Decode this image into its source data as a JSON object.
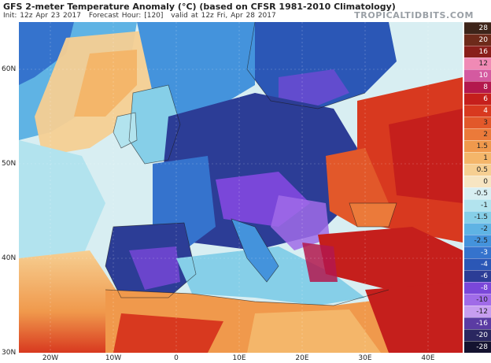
{
  "header": {
    "title": "GFS 2-meter Temperature Anomaly (°C) (based on CFSR 1981-2010 Climatology)",
    "init": "Init: 12z Apr 23 2017",
    "forecast_hour": "Forecast Hour: [120]",
    "valid": "valid at 12z Fri, Apr 28 2017",
    "brand": "TROPICALTIDBITS.COM"
  },
  "axes": {
    "lat_labels": [
      "60N",
      "50N",
      "40N",
      "30N"
    ],
    "lon_labels": [
      "20W",
      "10W",
      "0",
      "10E",
      "20E",
      "30E",
      "40E"
    ]
  },
  "legend": {
    "levels": [
      {
        "label": "28",
        "color": "#3d2419"
      },
      {
        "label": "20",
        "color": "#6e2a1a"
      },
      {
        "label": "16",
        "color": "#8a1e1a"
      },
      {
        "label": "12",
        "color": "#f08ab5"
      },
      {
        "label": "10",
        "color": "#d45aa0"
      },
      {
        "label": "8",
        "color": "#b3184d"
      },
      {
        "label": "6",
        "color": "#c51f1c"
      },
      {
        "label": "4",
        "color": "#d8391f"
      },
      {
        "label": "3",
        "color": "#e2582a"
      },
      {
        "label": "2",
        "color": "#eb7a3a"
      },
      {
        "label": "1.5",
        "color": "#f0994c"
      },
      {
        "label": "1",
        "color": "#f4b66a"
      },
      {
        "label": "0.5",
        "color": "#f6cf92"
      },
      {
        "label": "0",
        "color": "#f7e5c2"
      },
      {
        "label": "-0.5",
        "color": "#d8eef2"
      },
      {
        "label": "-1",
        "color": "#b2e3ee"
      },
      {
        "label": "-1.5",
        "color": "#86cfe8"
      },
      {
        "label": "-2",
        "color": "#5fb3e4"
      },
      {
        "label": "-2.5",
        "color": "#4493dc"
      },
      {
        "label": "-3",
        "color": "#3573cd"
      },
      {
        "label": "-4",
        "color": "#2b57b6"
      },
      {
        "label": "-6",
        "color": "#2c3d96"
      },
      {
        "label": "-8",
        "color": "#7a47d9"
      },
      {
        "label": "-10",
        "color": "#a06be8"
      },
      {
        "label": "-12",
        "color": "#c79ef0"
      },
      {
        "label": "-16",
        "color": "#5b3ca3"
      },
      {
        "label": "-20",
        "color": "#2a2760"
      },
      {
        "label": "-28",
        "color": "#141330"
      }
    ]
  }
}
